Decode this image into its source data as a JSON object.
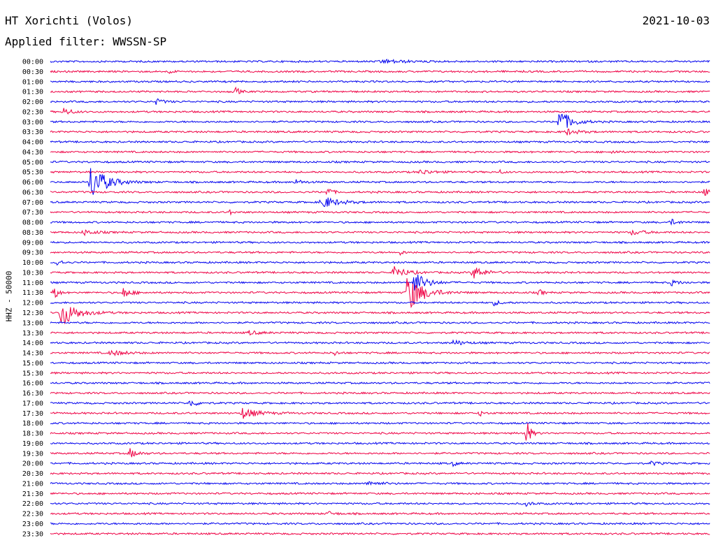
{
  "header": {
    "title": "HT Xorichti (Volos)",
    "date": "2021-10-03",
    "filter_text": "Applied filter: WWSSN-SP"
  },
  "channel_label": "HHZ - 50000",
  "chart_data": {
    "type": "line",
    "title": "HT Xorichti (Volos)",
    "subtitle": "Applied filter: WWSSN-SP",
    "ylabel": "HHZ - 50000",
    "xlabel": "",
    "grid": false,
    "colors": [
      "#0000ee",
      "#ee0044"
    ],
    "categories": [
      "00:00",
      "00:30",
      "01:00",
      "01:30",
      "02:00",
      "02:30",
      "03:00",
      "03:30",
      "04:00",
      "04:30",
      "05:00",
      "05:30",
      "06:00",
      "06:30",
      "07:00",
      "07:30",
      "08:00",
      "08:30",
      "09:00",
      "09:30",
      "10:00",
      "10:30",
      "11:00",
      "11:30",
      "12:00",
      "12:30",
      "13:00",
      "13:30",
      "14:00",
      "14:30",
      "15:00",
      "15:30",
      "16:00",
      "16:30",
      "17:00",
      "17:30",
      "18:00",
      "18:30",
      "19:00",
      "19:30",
      "20:00",
      "20:30",
      "21:00",
      "21:30",
      "22:00",
      "22:30",
      "23:00",
      "23:30"
    ],
    "x_range_minutes": [
      0,
      30
    ],
    "events": [
      {
        "row": 0,
        "t": 0.5,
        "amp": 3,
        "dur": 0.06
      },
      {
        "row": 1,
        "t": 0.18,
        "amp": 3,
        "dur": 0.01
      },
      {
        "row": 3,
        "t": 0.28,
        "amp": 8,
        "dur": 0.01
      },
      {
        "row": 4,
        "t": 0.16,
        "amp": 4,
        "dur": 0.02
      },
      {
        "row": 5,
        "t": 0.02,
        "amp": 6,
        "dur": 0.02
      },
      {
        "row": 6,
        "t": 0.77,
        "amp": 20,
        "dur": 0.03
      },
      {
        "row": 7,
        "t": 0.78,
        "amp": 5,
        "dur": 0.03
      },
      {
        "row": 9,
        "t": 0.85,
        "amp": 4,
        "dur": 0.01
      },
      {
        "row": 11,
        "t": 0.56,
        "amp": 4,
        "dur": 0.03
      },
      {
        "row": 11,
        "t": 0.68,
        "amp": 3,
        "dur": 0.01
      },
      {
        "row": 12,
        "t": 0.06,
        "amp": 28,
        "dur": 0.04
      },
      {
        "row": 12,
        "t": 0.37,
        "amp": 4,
        "dur": 0.02
      },
      {
        "row": 13,
        "t": 0.42,
        "amp": 10,
        "dur": 0.01
      },
      {
        "row": 13,
        "t": 0.99,
        "amp": 5,
        "dur": 0.02
      },
      {
        "row": 14,
        "t": 0.41,
        "amp": 10,
        "dur": 0.04
      },
      {
        "row": 15,
        "t": 0.27,
        "amp": 4,
        "dur": 0.01
      },
      {
        "row": 16,
        "t": 0.94,
        "amp": 4,
        "dur": 0.02
      },
      {
        "row": 17,
        "t": 0.05,
        "amp": 4,
        "dur": 0.03
      },
      {
        "row": 17,
        "t": 0.88,
        "amp": 4,
        "dur": 0.03
      },
      {
        "row": 19,
        "t": 0.53,
        "amp": 3,
        "dur": 0.01
      },
      {
        "row": 20,
        "t": 0.01,
        "amp": 8,
        "dur": 0.01
      },
      {
        "row": 21,
        "t": 0.52,
        "amp": 10,
        "dur": 0.03
      },
      {
        "row": 21,
        "t": 0.64,
        "amp": 10,
        "dur": 0.03
      },
      {
        "row": 22,
        "t": 0.55,
        "amp": 18,
        "dur": 0.03
      },
      {
        "row": 22,
        "t": 0.94,
        "amp": 4,
        "dur": 0.02
      },
      {
        "row": 23,
        "t": 0.005,
        "amp": 14,
        "dur": 0.01
      },
      {
        "row": 23,
        "t": 0.11,
        "amp": 8,
        "dur": 0.02
      },
      {
        "row": 23,
        "t": 0.54,
        "amp": 30,
        "dur": 0.04
      },
      {
        "row": 23,
        "t": 0.74,
        "amp": 6,
        "dur": 0.01
      },
      {
        "row": 24,
        "t": 0.67,
        "amp": 4,
        "dur": 0.02
      },
      {
        "row": 25,
        "t": 0.015,
        "amp": 22,
        "dur": 0.04
      },
      {
        "row": 27,
        "t": 0.3,
        "amp": 3,
        "dur": 0.03
      },
      {
        "row": 28,
        "t": 0.61,
        "amp": 4,
        "dur": 0.03
      },
      {
        "row": 29,
        "t": 0.09,
        "amp": 4,
        "dur": 0.04
      },
      {
        "row": 29,
        "t": 0.43,
        "amp": 4,
        "dur": 0.01
      },
      {
        "row": 34,
        "t": 0.21,
        "amp": 6,
        "dur": 0.02
      },
      {
        "row": 35,
        "t": 0.29,
        "amp": 8,
        "dur": 0.04
      },
      {
        "row": 35,
        "t": 0.65,
        "amp": 5,
        "dur": 0.01
      },
      {
        "row": 37,
        "t": 0.72,
        "amp": 28,
        "dur": 0.01
      },
      {
        "row": 39,
        "t": 0.12,
        "amp": 7,
        "dur": 0.02
      },
      {
        "row": 40,
        "t": 0.61,
        "amp": 4,
        "dur": 0.01
      },
      {
        "row": 40,
        "t": 0.91,
        "amp": 3,
        "dur": 0.02
      },
      {
        "row": 42,
        "t": 0.48,
        "amp": 4,
        "dur": 0.03
      },
      {
        "row": 44,
        "t": 0.72,
        "amp": 3,
        "dur": 0.02
      },
      {
        "row": 45,
        "t": 0.42,
        "amp": 3,
        "dur": 0.02
      }
    ]
  }
}
